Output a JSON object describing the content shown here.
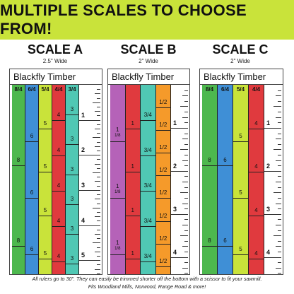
{
  "banner": {
    "title": "MULTIPLE SCALES TO CHOOSE FROM!",
    "color": "#c9e33a"
  },
  "scales": [
    {
      "title": "SCALE A",
      "width_label": "2.5\" Wide",
      "brand": "Blackfly Timber",
      "strips": [
        {
          "label": "8/4",
          "color": "#4db84e",
          "marks": [
            "8",
            "8"
          ]
        },
        {
          "label": "6/4",
          "color": "#3f8fd6",
          "marks": [
            "6",
            "6",
            "6"
          ]
        },
        {
          "label": "5/4",
          "color": "#c9e33a",
          "marks": [
            "5",
            "5",
            "5",
            "5"
          ]
        },
        {
          "label": "4/4",
          "color": "#e03a3e",
          "marks": [
            "4",
            "4",
            "4",
            "4",
            "4"
          ]
        },
        {
          "label": "3/4",
          "color": "#50c8b4",
          "marks": [
            "3",
            "3",
            "3",
            "3",
            "3",
            "3"
          ]
        }
      ],
      "inches": [
        "1",
        "2",
        "3",
        "4",
        "5"
      ]
    },
    {
      "title": "SCALE B",
      "width_label": "2\" Wide",
      "brand": "Blackfly Timber",
      "strips": [
        {
          "label": "",
          "color": "#b562b8",
          "marks": [
            "1 1/8",
            "1 1/8",
            "1 1/8"
          ]
        },
        {
          "label": "",
          "color": "#e03a3e",
          "marks": [
            "1",
            "1",
            "1",
            "1"
          ]
        },
        {
          "label": "",
          "color": "#50c8b4",
          "marks": [
            "3/4",
            "3/4",
            "3/4",
            "3/4",
            "3/4"
          ]
        },
        {
          "label": "",
          "color": "#f59a2a",
          "marks": [
            "1/2",
            "1/2",
            "1/2",
            "1/2",
            "1/2",
            "1/2",
            "1/2",
            "1/2"
          ]
        }
      ],
      "inches": [
        "1",
        "2",
        "3",
        "4"
      ]
    },
    {
      "title": "SCALE C",
      "width_label": "2\" Wide",
      "brand": "Blackfly Timber",
      "strips": [
        {
          "label": "8/4",
          "color": "#4db84e",
          "marks": [
            "8",
            "8"
          ]
        },
        {
          "label": "6/4",
          "color": "#3f8fd6",
          "marks": [
            "6",
            "6"
          ]
        },
        {
          "label": "5/4",
          "color": "#c9e33a",
          "marks": [
            "5",
            "5",
            "5"
          ]
        },
        {
          "label": "4/4",
          "color": "#e03a3e",
          "marks": [
            "4",
            "4",
            "4",
            "4"
          ]
        }
      ],
      "inches": [
        "1",
        "2",
        "3",
        "4"
      ]
    }
  ],
  "footer": {
    "line1": "All rulers go to 30\". They can easily be trimmed shorter off the bottom with a scissor to fit your sawmill.",
    "line2": "Fits Woodland Mills, Norwood, Range Road & more!"
  }
}
